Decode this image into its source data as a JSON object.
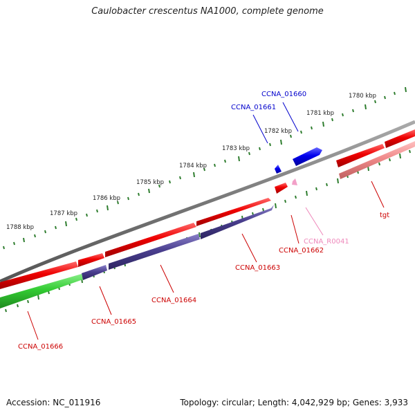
{
  "title": "Caulobacter crescentus NA1000, complete genome",
  "footer": {
    "accession": "Accession: NC_011916",
    "summary": "Topology: circular; Length: 4,042,929 bp; Genes: 3,933"
  },
  "scale_labels": [
    "1780 kbp",
    "1781 kbp",
    "1782 kbp",
    "1783 kbp",
    "1784 kbp",
    "1785 kbp",
    "1786 kbp",
    "1787 kbp",
    "1788 kbp"
  ],
  "genes": [
    {
      "name": "CCNA_01660",
      "color": "#0000cc"
    },
    {
      "name": "CCNA_01661",
      "color": "#0000cc"
    },
    {
      "name": "tgt",
      "color": "#cc0000"
    },
    {
      "name": "CCNA_R0041",
      "color": "#ee88bb"
    },
    {
      "name": "CCNA_01662",
      "color": "#cc0000"
    },
    {
      "name": "CCNA_01663",
      "color": "#cc0000"
    },
    {
      "name": "CCNA_01664",
      "color": "#cc0000"
    },
    {
      "name": "CCNA_01665",
      "color": "#cc0000"
    },
    {
      "name": "CCNA_01666",
      "color": "#cc0000"
    }
  ],
  "colors": {
    "backbone": "#777777",
    "cds": "#ee0000",
    "cds_light": "#f08a8a",
    "blue": "#0000ee",
    "purple": "#4a3f8f",
    "green": "#33cc33",
    "pink": "#f2a0c8",
    "tick": "#2e7d2e"
  }
}
